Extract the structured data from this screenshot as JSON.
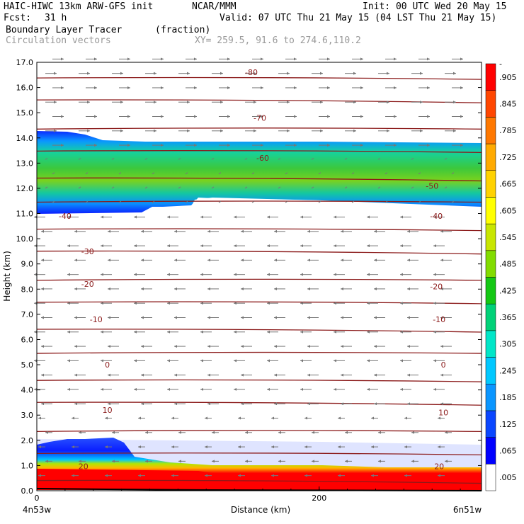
{
  "header": {
    "model": "HAIC-HIWC 13km ARW-GFS init",
    "org": "NCAR/MMM",
    "init": "Init: 00 UTC Wed 20 May 15",
    "fcst_label": "Fcst:",
    "fcst_value": "31 h",
    "valid": "Valid: 07 UTC Thu 21 May 15 (04 LST Thu 21 May 15)",
    "field": "Boundary Layer Tracer",
    "units": "(fraction)",
    "overlay": "Circulation vectors",
    "xy": "XY= 259.5, 91.6 to 274.6,110.2"
  },
  "chart_data": {
    "type": "heatmap",
    "ylabel": "Height (km)",
    "xlabel": "Distance (km)",
    "x_left_label": "4n53w",
    "x_right_label": "6n51w",
    "xlim": [
      0,
      315
    ],
    "xticks": [
      "0",
      "200"
    ],
    "ylim": [
      0,
      17
    ],
    "yticks": [
      "0.0",
      "1.0",
      "2.0",
      "3.0",
      "4.0",
      "5.0",
      "6.0",
      "7.0",
      "8.0",
      "9.0",
      "10.0",
      "11.0",
      "12.0",
      "13.0",
      "14.0",
      "15.0",
      "16.0",
      "17.0"
    ],
    "colorbar": {
      "labels": [
        ".005",
        ".065",
        ".125",
        ".185",
        ".245",
        ".305",
        ".365",
        ".425",
        ".485",
        ".545",
        ".605",
        ".665",
        ".725",
        ".785",
        ".845",
        ".905",
        "-"
      ],
      "colors": [
        "#ffffff",
        "#0000ff",
        "#0a46ff",
        "#0a96ff",
        "#00c8ff",
        "#00e6c8",
        "#00d278",
        "#14c814",
        "#82dc00",
        "#c8e600",
        "#ffff00",
        "#ffd200",
        "#ffaa00",
        "#ff7800",
        "#ff4600",
        "#ff0000"
      ]
    },
    "isotherm_labels": [
      {
        "label": "-80",
        "x": 152,
        "y": 16.6
      },
      {
        "label": "-70",
        "x": 158,
        "y": 14.8
      },
      {
        "label": "-60",
        "x": 160,
        "y": 13.2
      },
      {
        "label": "-50",
        "x": 280,
        "y": 12.1
      },
      {
        "label": "-40",
        "x": 20,
        "y": 10.9
      },
      {
        "label": "-40",
        "x": 283,
        "y": 10.9
      },
      {
        "label": "-30",
        "x": 36,
        "y": 9.5
      },
      {
        "label": "-20",
        "x": 36,
        "y": 8.2
      },
      {
        "label": "-20",
        "x": 283,
        "y": 8.1
      },
      {
        "label": "-10",
        "x": 42,
        "y": 6.8
      },
      {
        "label": "-10",
        "x": 285,
        "y": 6.8
      },
      {
        "label": "0",
        "x": 50,
        "y": 5.0
      },
      {
        "label": "0",
        "x": 288,
        "y": 5.0
      },
      {
        "label": "10",
        "x": 50,
        "y": 3.2
      },
      {
        "label": "10",
        "x": 288,
        "y": 3.1
      },
      {
        "label": "20",
        "x": 33,
        "y": 0.97
      },
      {
        "label": "20",
        "x": 285,
        "y": 0.97
      }
    ]
  }
}
